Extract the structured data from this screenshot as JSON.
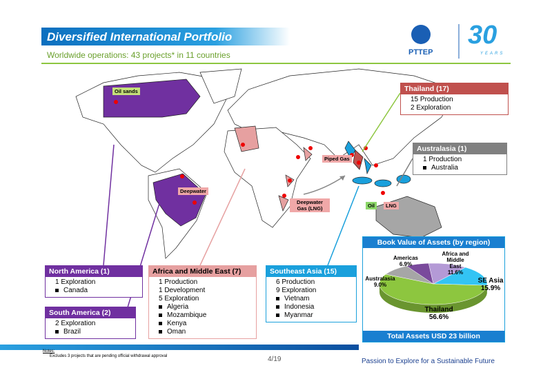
{
  "header": {
    "title": "Diversified International Portfolio",
    "subtitle": "Worldwide operations: 43 projects* in 11 countries",
    "logo": "PTTEP",
    "anniversary": "30",
    "anniversary_caption": "YEARS"
  },
  "map_labels": [
    "Oil sands",
    "Deepwater",
    "Piped Gas",
    "Deepwater Gas (LNG)",
    "Oil",
    "LNG"
  ],
  "regions": [
    {
      "title": "North America (1)",
      "items": [
        "1 Exploration"
      ],
      "countries": [
        "Canada"
      ]
    },
    {
      "title": "South America (2)",
      "items": [
        "2 Exploration"
      ],
      "countries": [
        "Brazil"
      ]
    },
    {
      "title": "Africa and Middle East (7)",
      "items": [
        "1 Production",
        "1 Development",
        "5 Exploration"
      ],
      "countries": [
        "Algeria",
        "Mozambique",
        "Kenya",
        "Oman"
      ]
    },
    {
      "title": "Southeast Asia (15)",
      "items": [
        "6 Production",
        "9 Exploration"
      ],
      "countries": [
        "Vietnam",
        "Indonesia",
        "Myanmar"
      ]
    },
    {
      "title": "Thailand (17)",
      "items": [
        "15 Production",
        "2 Exploration"
      ],
      "countries": []
    },
    {
      "title": "Australasia (1)",
      "items": [
        "1 Production"
      ],
      "countries": [
        "Australia"
      ]
    }
  ],
  "book_value": {
    "type": "pie",
    "title": "Book Value of Assets (by region)",
    "categories": [
      "Africa and Middle East",
      "SE Asia",
      "Thailand",
      "Australasia",
      "Americas"
    ],
    "values": [
      11.6,
      15.9,
      56.6,
      9.0,
      6.9
    ],
    "value_labels": [
      "11.6%",
      "15.9%",
      "56.6%",
      "9.0%",
      "6.9%"
    ],
    "colors": [
      "#b49ad6",
      "#33c4f4",
      "#8dc63f",
      "#a6a6a6",
      "#7a4a9c"
    ],
    "total": "Total Assets USD 23 billion"
  },
  "footer": {
    "notes_title": "Notes:",
    "note": "Excludes 3 projects that are pending official withdrawal approval",
    "page": "4/19",
    "tagline": "Passion to Explore for a Sustainable Future"
  }
}
